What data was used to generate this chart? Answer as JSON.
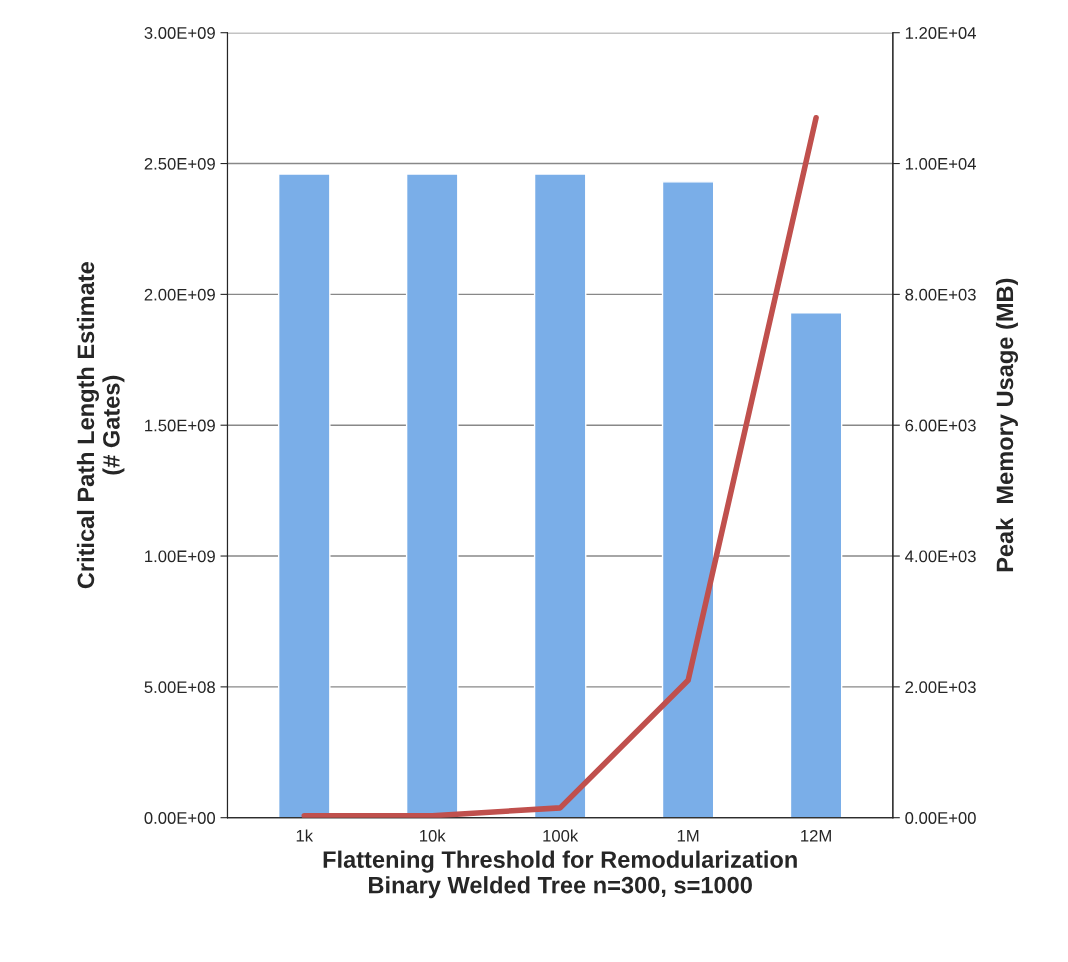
{
  "chart_data": {
    "type": "bar",
    "xlabel": "Flattening Threshold for Remodularization\nBinary Welded Tree n=300, s=1000",
    "ylabel": "Critical Path Length Estimate\n(# Gates)",
    "y2label": "Peak  Memory Usage (MB)",
    "categories": [
      "1k",
      "10k",
      "100k",
      "1M",
      "12M"
    ],
    "series": [
      {
        "color": "#7aaee8",
        "values": [
          2460000000.0,
          2460000000.0,
          2460000000.0,
          2430000000.0,
          1930000000.0
        ]
      },
      {
        "type": "line",
        "axis": "y2",
        "color": "#c0504d",
        "values": [
          30,
          30,
          150,
          2100,
          10700
        ]
      }
    ],
    "ylim": [
      0,
      3000000000.0
    ],
    "yticks": [
      {
        "value": 0,
        "label": "0.00E+00"
      },
      {
        "value": 500000000.0,
        "label": "5.00E+08"
      },
      {
        "value": 1000000000.0,
        "label": "1.00E+09"
      },
      {
        "value": 1500000000.0,
        "label": "1.50E+09"
      },
      {
        "value": 2000000000.0,
        "label": "2.00E+09"
      },
      {
        "value": 2500000000.0,
        "label": "2.50E+09"
      },
      {
        "value": 3000000000.0,
        "label": "3.00E+09"
      }
    ],
    "y2lim": [
      0,
      12000
    ],
    "y2ticks": [
      {
        "value": 0,
        "label": "0.00E+00"
      },
      {
        "value": 2000,
        "label": "2.00E+03"
      },
      {
        "value": 4000,
        "label": "4.00E+03"
      },
      {
        "value": 6000,
        "label": "6.00E+03"
      },
      {
        "value": 8000,
        "label": "8.00E+03"
      },
      {
        "value": 10000,
        "label": "1.00E+04"
      },
      {
        "value": 12000,
        "label": "1.20E+04"
      }
    ],
    "grid": "y",
    "marker": "none",
    "line_style": "solid"
  }
}
